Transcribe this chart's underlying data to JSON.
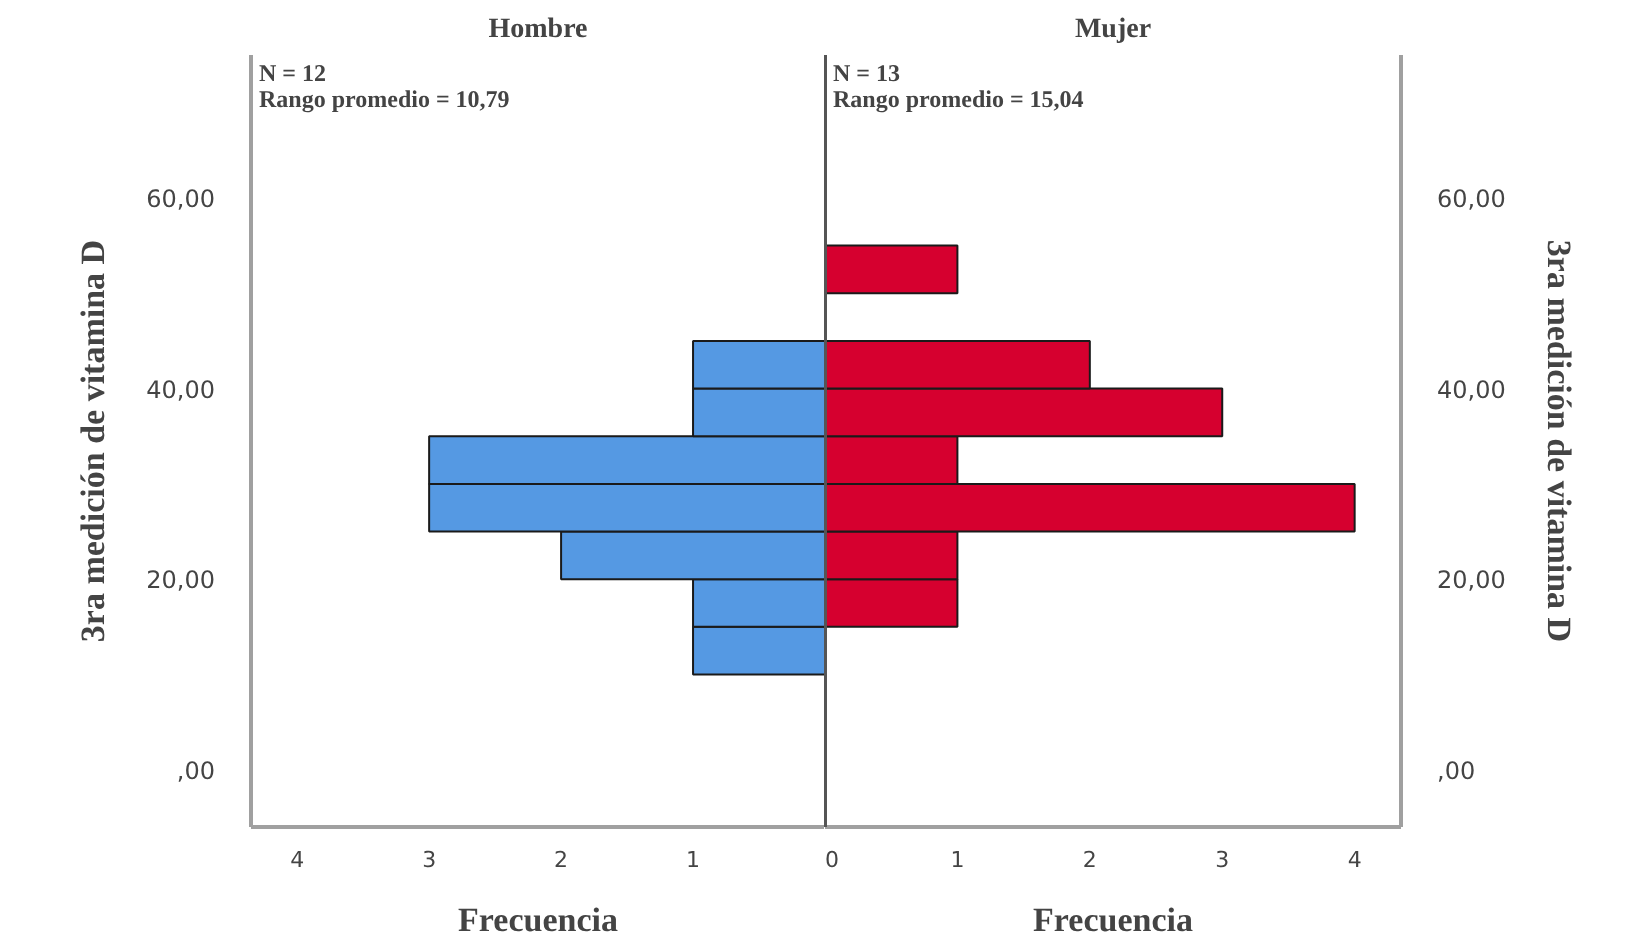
{
  "chart_data": [
    {
      "type": "histogram",
      "orientation": "horizontal",
      "title": "Hombre",
      "xlabel": "Frecuencia",
      "ylabel": "3ra medición de vitamina D",
      "annotations": [
        "N = 12",
        "Rango promedio = 10,79"
      ],
      "color": "#5599e3",
      "bins": [
        10,
        15,
        20,
        25,
        30,
        35,
        40,
        45
      ],
      "values": [
        1,
        1,
        2,
        3,
        3,
        1,
        1
      ],
      "xlim": [
        4.35,
        0
      ],
      "xticks": [
        4,
        3,
        2,
        1
      ],
      "ylim": [
        -6,
        75
      ],
      "yticks": [
        {
          "value": 0,
          "label": ",00"
        },
        {
          "value": 20,
          "label": "20,00"
        },
        {
          "value": 40,
          "label": "40,00"
        },
        {
          "value": 60,
          "label": "60,00"
        }
      ]
    },
    {
      "type": "histogram",
      "orientation": "horizontal",
      "title": "Mujer",
      "xlabel": "Frecuencia",
      "ylabel": "3ra medición de vitamina D",
      "annotations": [
        "N = 13",
        "Rango promedio = 15,04"
      ],
      "color": "#d6002f",
      "bins": [
        15,
        20,
        25,
        30,
        35,
        40,
        45,
        50,
        55
      ],
      "values": [
        1,
        1,
        4,
        1,
        3,
        2,
        0,
        1
      ],
      "xlim": [
        0,
        4.35
      ],
      "xticks": [
        0,
        1,
        2,
        3,
        4
      ],
      "ylim": [
        -6,
        75
      ],
      "yticks": [
        {
          "value": 0,
          "label": ",00"
        },
        {
          "value": 20,
          "label": "20,00"
        },
        {
          "value": 40,
          "label": "40,00"
        },
        {
          "value": 60,
          "label": "60,00"
        }
      ]
    }
  ]
}
